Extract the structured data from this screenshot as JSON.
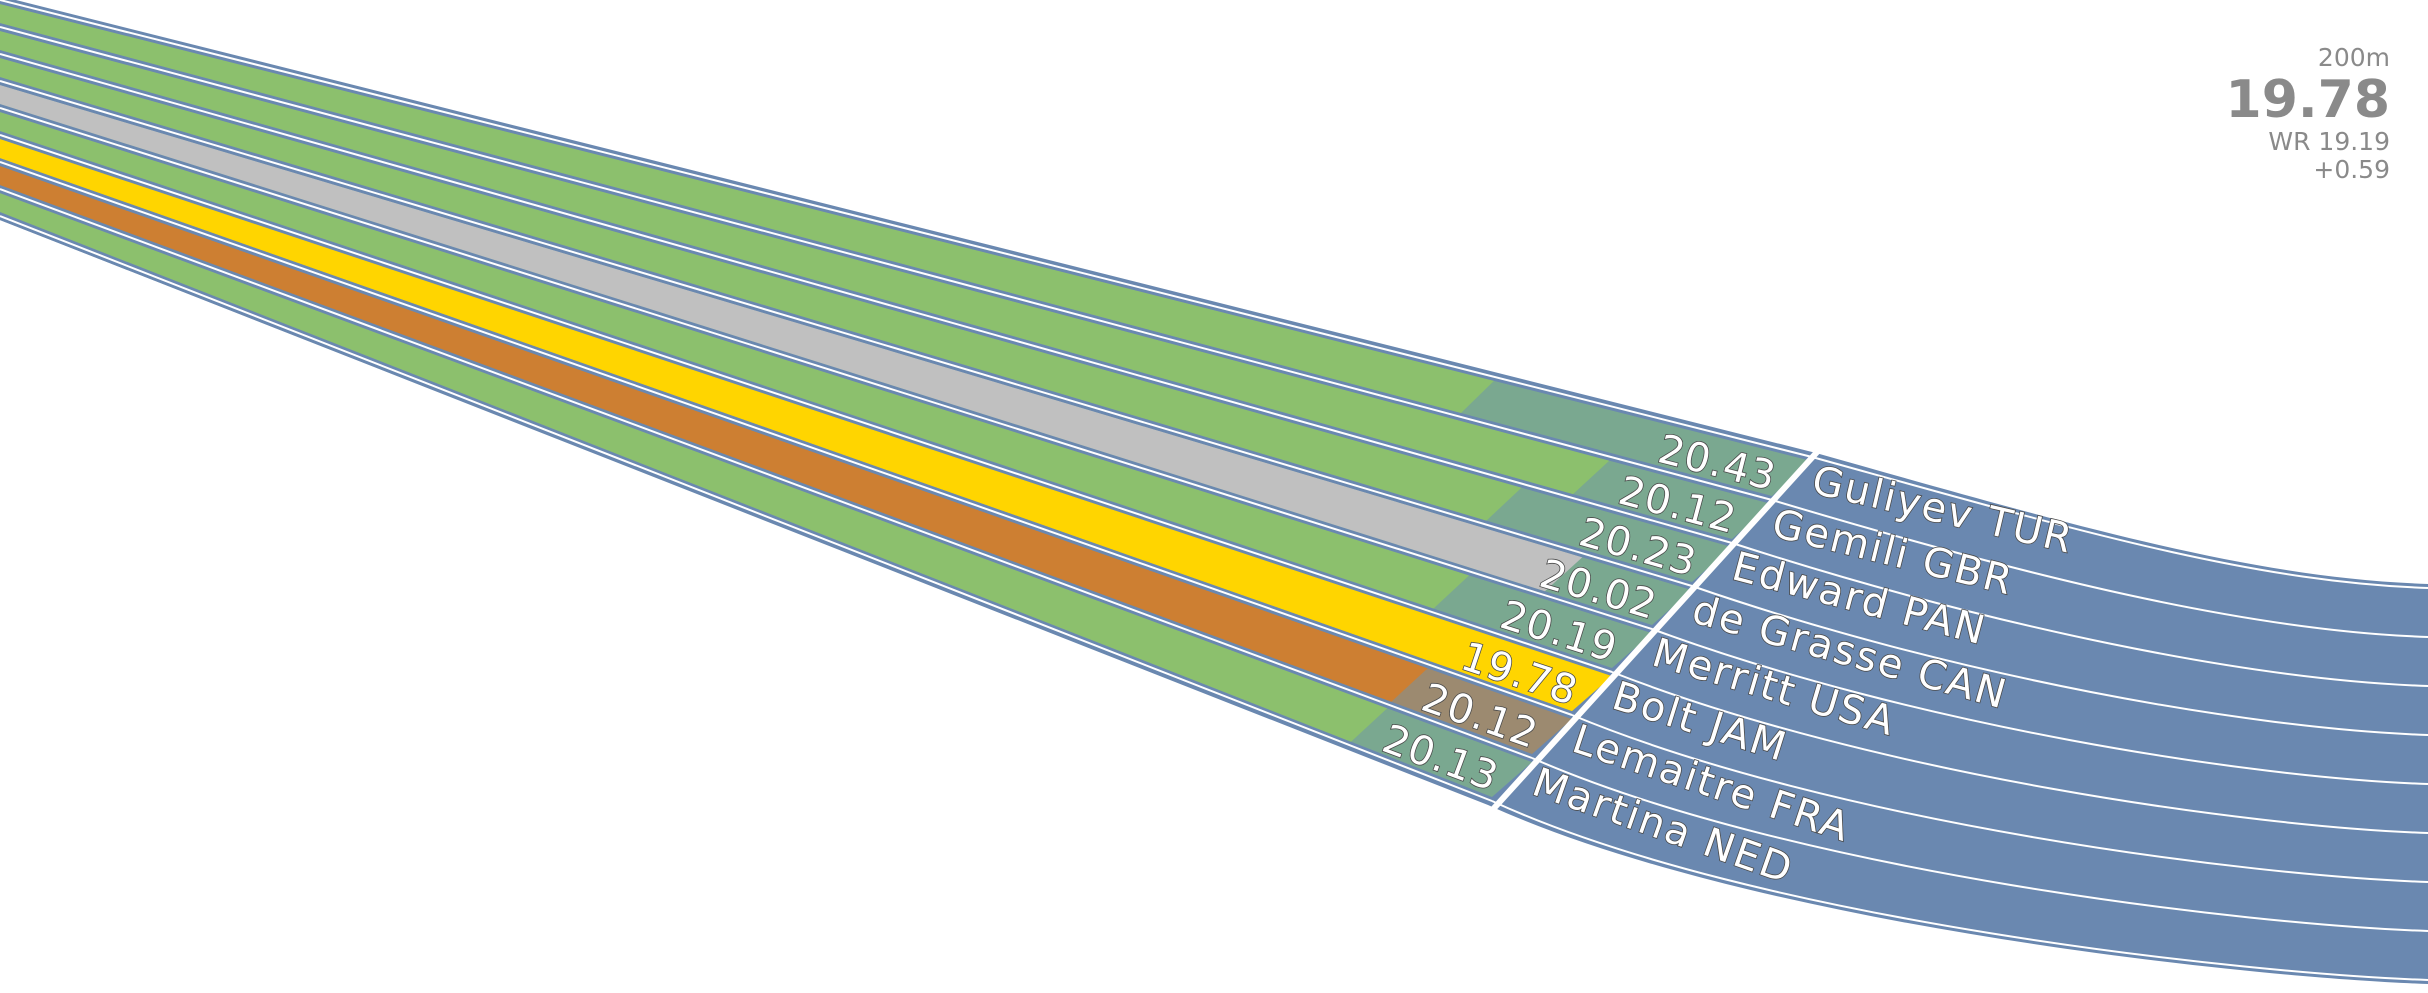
{
  "scoreboard": {
    "event": "200m",
    "winning_time": "19.78",
    "world_record": "WR 19.19",
    "gap": "+0.59"
  },
  "colors": {
    "lane_blue": "#6a88b0",
    "grass_green": "#8cc06d",
    "finish_green": "#7aa890",
    "gold": "#ffd500",
    "silver": "#c0c0c0",
    "bronze": "#cd7f32",
    "bronze_finish": "#9c8a70",
    "line": "#ffffff"
  },
  "lanes": [
    {
      "athlete": "Guliyev TUR",
      "time": "20.43",
      "medal": "none"
    },
    {
      "athlete": "Gemili GBR",
      "time": "20.12",
      "medal": "none"
    },
    {
      "athlete": "Edward PAN",
      "time": "20.23",
      "medal": "none"
    },
    {
      "athlete": "de Grasse CAN",
      "time": "20.02",
      "medal": "silver"
    },
    {
      "athlete": "Merritt USA",
      "time": "20.19",
      "medal": "none"
    },
    {
      "athlete": "Bolt JAM",
      "time": "19.78",
      "medal": "gold"
    },
    {
      "athlete": "Lemaitre FRA",
      "time": "20.12",
      "medal": "bronze"
    },
    {
      "athlete": "Martina NED",
      "time": "20.13",
      "medal": "none"
    }
  ]
}
